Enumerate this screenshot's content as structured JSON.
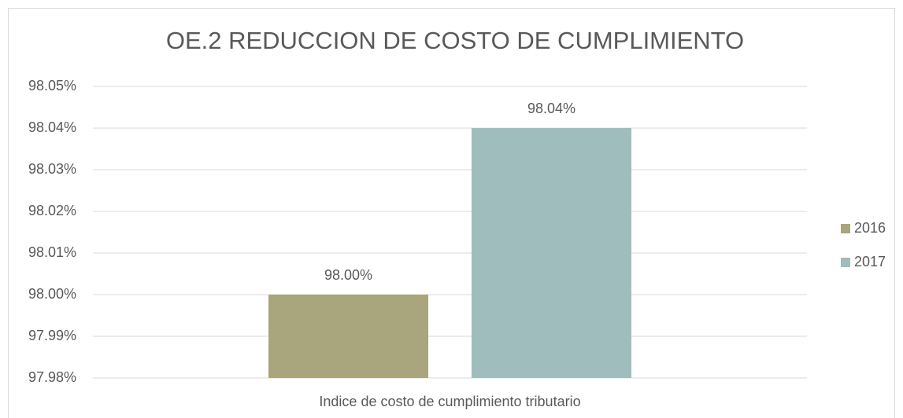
{
  "chart_data": {
    "type": "bar",
    "title": "OE.2   REDUCCION DE COSTO DE CUMPLIMIENTO",
    "categories": [
      "Indice de costo de cumplimiento tributario"
    ],
    "series": [
      {
        "name": "2016",
        "color": "#a9a57c",
        "values": [
          98.0
        ],
        "value_labels": [
          "98.00%"
        ]
      },
      {
        "name": "2017",
        "color": "#9fbdbd",
        "values": [
          98.04
        ],
        "value_labels": [
          "98.04%"
        ]
      }
    ],
    "ylim": [
      97.98,
      98.05
    ],
    "yticks": [
      {
        "value": 97.98,
        "label": "97.98%"
      },
      {
        "value": 97.99,
        "label": "97.99%"
      },
      {
        "value": 98.0,
        "label": "98.00%"
      },
      {
        "value": 98.01,
        "label": "98.01%"
      },
      {
        "value": 98.02,
        "label": "98.02%"
      },
      {
        "value": 98.03,
        "label": "98.03%"
      },
      {
        "value": 98.04,
        "label": "98.04%"
      },
      {
        "value": 98.05,
        "label": "98.05%"
      }
    ],
    "grid": true,
    "legend": "right"
  }
}
